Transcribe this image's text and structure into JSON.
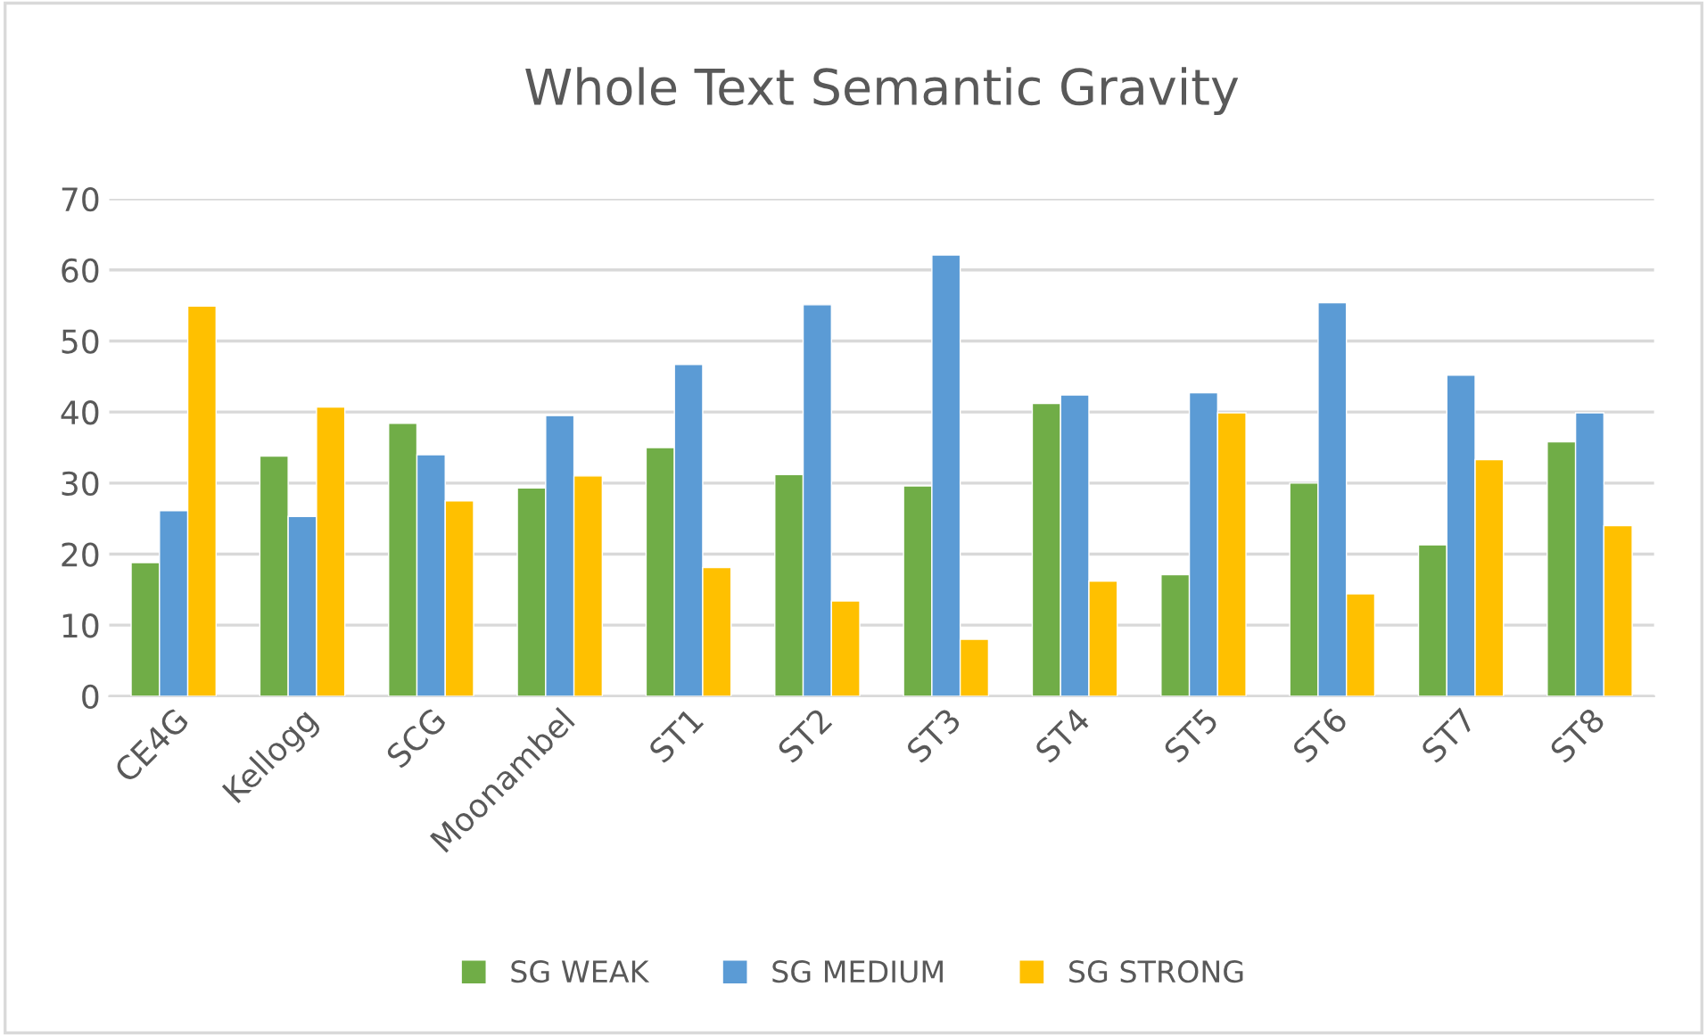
{
  "chart_data": {
    "type": "bar",
    "title": "Whole Text Semantic Gravity",
    "categories": [
      "CE4G",
      "Kellogg",
      "SCG",
      "Moonambel",
      "ST1",
      "ST2",
      "ST3",
      "ST4",
      "ST5",
      "ST6",
      "ST7",
      "ST8"
    ],
    "series": [
      {
        "name": "SG WEAK",
        "color": "#70ad47",
        "values": [
          18.8,
          33.8,
          38.4,
          29.3,
          35.0,
          31.2,
          29.6,
          41.2,
          17.1,
          30.0,
          21.3,
          35.8
        ]
      },
      {
        "name": "SG MEDIUM",
        "color": "#5b9bd5",
        "values": [
          26.1,
          25.3,
          34.0,
          39.5,
          46.7,
          55.1,
          62.1,
          42.4,
          42.7,
          55.4,
          45.2,
          39.9
        ]
      },
      {
        "name": "SG STRONG",
        "color": "#ffc000",
        "values": [
          54.9,
          40.7,
          27.5,
          31.0,
          18.1,
          13.4,
          8.0,
          16.2,
          39.9,
          14.4,
          33.3,
          24.0
        ]
      }
    ],
    "ylim": [
      0,
      70
    ],
    "yticks": [
      0,
      10,
      20,
      30,
      40,
      50,
      60,
      70
    ],
    "grid": "y",
    "legend": "bottom"
  }
}
